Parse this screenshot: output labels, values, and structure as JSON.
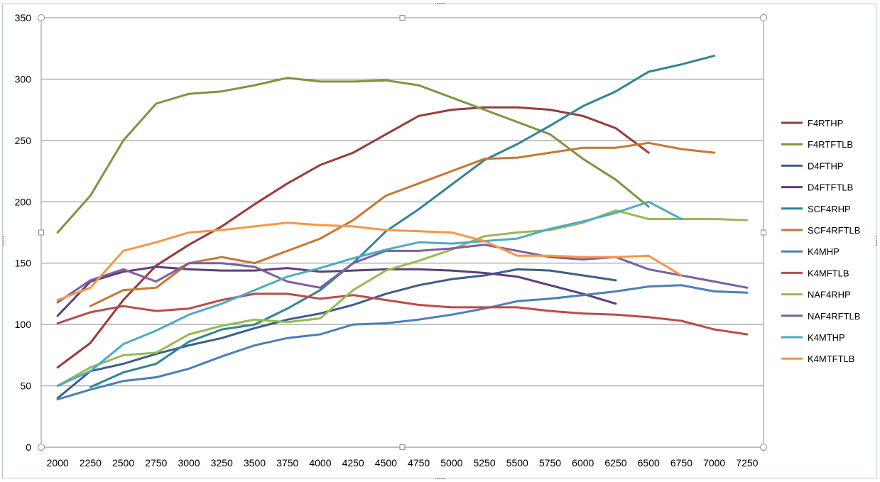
{
  "chart_data": {
    "type": "line",
    "title": "",
    "xlabel": "",
    "ylabel": "",
    "ylim": [
      0,
      350
    ],
    "y_ticks": [
      "0",
      "50",
      "100",
      "150",
      "200",
      "250",
      "300",
      "350"
    ],
    "categories": [
      "2000",
      "2250",
      "2500",
      "2750",
      "3000",
      "3250",
      "3500",
      "3750",
      "4000",
      "4250",
      "4500",
      "4750",
      "5000",
      "5250",
      "5500",
      "5750",
      "6000",
      "6250",
      "6500",
      "6750",
      "7000",
      "7250"
    ],
    "grid": "horizontal",
    "legend_position": "right",
    "series": [
      {
        "name": "F4RTHP",
        "color": "#983b3a",
        "values": [
          65,
          85,
          120,
          148,
          165,
          180,
          198,
          215,
          230,
          240,
          255,
          270,
          275,
          277,
          277,
          275,
          270,
          260,
          240,
          null,
          null,
          null
        ]
      },
      {
        "name": "F4RTFTLB",
        "color": "#7a9642",
        "values": [
          175,
          205,
          250,
          280,
          288,
          290,
          295,
          301,
          298,
          298,
          299,
          295,
          285,
          275,
          265,
          255,
          235,
          218,
          196,
          null,
          null,
          null
        ]
      },
      {
        "name": "D4FTHP",
        "color": "#3b5f8c",
        "values": [
          40,
          62,
          68,
          76,
          83,
          89,
          97,
          104,
          109,
          116,
          125,
          132,
          137,
          140,
          145,
          144,
          140,
          136,
          null,
          null,
          null,
          null
        ]
      },
      {
        "name": "D4FTFTLB",
        "color": "#5e3f79",
        "values": [
          107,
          135,
          143,
          147,
          145,
          144,
          144,
          146,
          143,
          144,
          145,
          145,
          144,
          142,
          139,
          132,
          125,
          117,
          null,
          null,
          null,
          null
        ]
      },
      {
        "name": "SCF4RHP",
        "color": "#2f8696",
        "values": [
          null,
          49,
          61,
          68,
          86,
          96,
          100,
          113,
          128,
          150,
          176,
          194,
          214,
          234,
          247,
          262,
          278,
          290,
          306,
          312,
          319,
          null
        ]
      },
      {
        "name": "SCF4RFTLB",
        "color": "#c8772f",
        "values": [
          null,
          115,
          128,
          130,
          150,
          155,
          150,
          160,
          170,
          185,
          205,
          215,
          225,
          235,
          236,
          240,
          244,
          244,
          248,
          243,
          240,
          null
        ]
      },
      {
        "name": "K4MHP",
        "color": "#4a7ebb",
        "values": [
          39,
          47,
          54,
          57,
          64,
          74,
          83,
          89,
          92,
          100,
          101,
          104,
          108,
          113,
          119,
          121,
          124,
          127,
          131,
          132,
          127,
          126
        ]
      },
      {
        "name": "K4MFTLB",
        "color": "#be4b48",
        "values": [
          101,
          110,
          115,
          111,
          113,
          120,
          125,
          125,
          121,
          124,
          120,
          116,
          114,
          114,
          114,
          111,
          109,
          108,
          106,
          103,
          96,
          92
        ]
      },
      {
        "name": "NAF4RHP",
        "color": "#98b954",
        "values": [
          50,
          65,
          75,
          77,
          92,
          99,
          104,
          102,
          105,
          128,
          144,
          152,
          161,
          172,
          175,
          177,
          183,
          193,
          186,
          186,
          186,
          185
        ]
      },
      {
        "name": "NAF4RFTLB",
        "color": "#7d5fa0",
        "values": [
          118,
          136,
          145,
          135,
          150,
          150,
          147,
          135,
          130,
          150,
          160,
          160,
          162,
          165,
          160,
          155,
          153,
          155,
          145,
          140,
          135,
          130
        ]
      },
      {
        "name": "K4MTHP",
        "color": "#4bacc6",
        "values": [
          50,
          62,
          84,
          95,
          108,
          117,
          128,
          139,
          146,
          154,
          161,
          167,
          166,
          168,
          170,
          178,
          184,
          191,
          200,
          186,
          null,
          null
        ]
      },
      {
        "name": "K4MTFTLB",
        "color": "#f79646",
        "values": [
          120,
          130,
          160,
          167,
          175,
          177,
          180,
          183,
          181,
          180,
          177,
          176,
          175,
          168,
          156,
          156,
          155,
          155,
          156,
          140,
          null,
          null
        ]
      }
    ]
  }
}
